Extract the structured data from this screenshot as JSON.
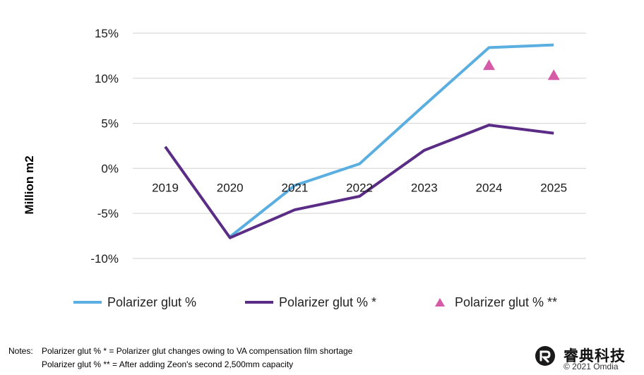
{
  "chart_data": {
    "type": "line",
    "categories": [
      "2019",
      "2020",
      "2021",
      "2022",
      "2023",
      "2024",
      "2025"
    ],
    "ylabel": "Million m2",
    "xlabel": "",
    "ylim": [
      -10,
      15
    ],
    "yticks": [
      15,
      10,
      5,
      0,
      -5,
      -10
    ],
    "ytick_labels": [
      "15%",
      "10%",
      "5%",
      "0%",
      "-5%",
      "-10%"
    ],
    "grid": true,
    "legend": "bottom",
    "series": [
      {
        "name": "Polarizer glut %",
        "kind": "line",
        "color": "#5aaee0",
        "values": [
          null,
          -7.6,
          -1.9,
          0.5,
          7.0,
          13.4,
          13.7
        ]
      },
      {
        "name": "Polarizer glut % *",
        "kind": "line",
        "color": "#5b2c86",
        "values": [
          2.4,
          -7.7,
          -4.6,
          -3.1,
          2.0,
          4.8,
          3.9
        ]
      },
      {
        "name": "Polarizer glut % **",
        "kind": "marker",
        "marker": "triangle",
        "color": "#d55aa8",
        "values": [
          null,
          null,
          null,
          null,
          null,
          11.5,
          10.4
        ]
      }
    ]
  },
  "notes": {
    "label": "Notes:",
    "line1": "Polarizer glut % *  = Polarizer glut changes owing to VA compensation film shortage",
    "line2": "Polarizer glut % ** = After adding Zeon's second 2,500mm capacity"
  },
  "watermark": {
    "brand": "睿典科技",
    "copyright": "© 2021 Omdia"
  }
}
